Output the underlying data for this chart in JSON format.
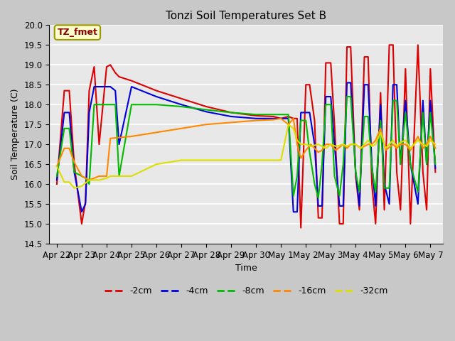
{
  "title": "Tonzi Soil Temperatures Set B",
  "xlabel": "Time",
  "ylabel": "Soil Temperature (C)",
  "ylim": [
    14.5,
    20.0
  ],
  "annotation": "TZ_fmet",
  "fig_color": "#c8c8c8",
  "ax_color": "#e8e8e8",
  "x_labels": [
    "Apr 22",
    "Apr 23",
    "Apr 24",
    "Apr 25",
    "Apr 26",
    "Apr 27",
    "Apr 28",
    "Apr 29",
    "Apr 30",
    "May 1",
    "May 2",
    "May 3",
    "May 4",
    "May 5",
    "May 6",
    "May 7"
  ],
  "series_colors": {
    "-2cm": "#dd0000",
    "-4cm": "#0000dd",
    "-8cm": "#00bb00",
    "-16cm": "#ff8800",
    "-32cm": "#dddd00"
  },
  "t_red": [
    0.0,
    0.3,
    0.5,
    0.7,
    1.0,
    1.15,
    1.3,
    1.5,
    1.7,
    2.0,
    2.15,
    2.35,
    2.5,
    3.0,
    4.0,
    5.0,
    6.0,
    7.0,
    8.0,
    8.7,
    9.0,
    9.3,
    9.5,
    9.65,
    9.8,
    10.0,
    10.15,
    10.35,
    10.5,
    10.65,
    10.8,
    11.0,
    11.15,
    11.35,
    11.5,
    11.65,
    11.8,
    12.0,
    12.15,
    12.35,
    12.5,
    12.65,
    12.8,
    13.0,
    13.15,
    13.35,
    13.5,
    13.65,
    13.8,
    14.0,
    14.2,
    14.5,
    14.7,
    14.85,
    15.0,
    15.2
  ],
  "y_red": [
    16.0,
    18.35,
    18.35,
    16.5,
    15.0,
    15.55,
    18.35,
    18.95,
    17.0,
    18.95,
    19.0,
    18.8,
    18.7,
    18.6,
    18.35,
    18.15,
    17.95,
    17.8,
    17.72,
    17.7,
    17.65,
    17.7,
    17.65,
    17.65,
    14.9,
    18.5,
    18.5,
    17.6,
    15.15,
    15.15,
    19.05,
    19.05,
    17.5,
    15.0,
    15.0,
    19.45,
    19.45,
    16.2,
    15.35,
    19.2,
    19.2,
    16.0,
    15.0,
    18.3,
    15.35,
    19.5,
    19.5,
    16.3,
    15.35,
    18.9,
    15.0,
    19.5,
    16.3,
    15.35,
    18.9,
    16.3
  ],
  "t_blue": [
    0.0,
    0.3,
    0.5,
    0.7,
    1.0,
    1.15,
    1.3,
    1.5,
    2.0,
    2.15,
    2.35,
    2.5,
    3.0,
    4.0,
    5.0,
    6.0,
    7.0,
    8.0,
    8.7,
    9.0,
    9.3,
    9.5,
    9.65,
    9.8,
    10.0,
    10.15,
    10.35,
    10.5,
    10.65,
    10.8,
    11.0,
    11.15,
    11.35,
    11.5,
    11.65,
    11.8,
    12.0,
    12.15,
    12.35,
    12.5,
    12.65,
    12.8,
    13.0,
    13.15,
    13.35,
    13.5,
    13.65,
    13.8,
    14.0,
    14.2,
    14.5,
    14.7,
    14.85,
    15.0,
    15.2
  ],
  "y_blue": [
    16.1,
    17.8,
    17.8,
    16.3,
    15.3,
    15.5,
    17.8,
    18.45,
    18.45,
    18.45,
    18.35,
    17.0,
    18.45,
    18.2,
    18.0,
    17.82,
    17.7,
    17.65,
    17.65,
    17.65,
    17.65,
    15.3,
    15.3,
    17.8,
    17.8,
    17.8,
    17.0,
    15.45,
    15.45,
    18.2,
    18.2,
    17.0,
    15.45,
    15.45,
    18.55,
    18.55,
    16.3,
    15.45,
    18.5,
    18.5,
    16.5,
    15.45,
    18.0,
    16.0,
    15.5,
    18.5,
    18.5,
    16.5,
    18.1,
    16.5,
    15.5,
    18.1,
    16.5,
    18.1,
    16.4
  ],
  "t_green": [
    0.0,
    0.3,
    0.5,
    0.7,
    1.0,
    1.15,
    1.3,
    1.5,
    2.0,
    2.15,
    2.35,
    2.5,
    3.0,
    4.0,
    5.0,
    6.0,
    7.0,
    8.0,
    8.7,
    9.0,
    9.3,
    9.5,
    9.65,
    9.8,
    10.0,
    10.15,
    10.35,
    10.5,
    10.65,
    10.8,
    11.0,
    11.15,
    11.35,
    11.5,
    11.65,
    11.8,
    12.0,
    12.15,
    12.35,
    12.5,
    12.65,
    12.8,
    13.0,
    13.15,
    13.35,
    13.5,
    13.65,
    13.8,
    14.0,
    14.2,
    14.5,
    14.7,
    14.85,
    15.0,
    15.2
  ],
  "y_green": [
    16.2,
    17.4,
    17.4,
    16.3,
    16.2,
    16.15,
    16.0,
    18.0,
    18.0,
    18.0,
    18.0,
    16.2,
    18.0,
    18.0,
    17.95,
    17.87,
    17.8,
    17.75,
    17.75,
    17.75,
    17.75,
    15.7,
    16.2,
    17.6,
    17.6,
    16.8,
    16.0,
    15.65,
    16.5,
    18.0,
    18.0,
    16.2,
    15.7,
    16.5,
    18.2,
    18.2,
    16.3,
    15.8,
    17.7,
    17.7,
    16.4,
    15.8,
    17.6,
    15.9,
    15.9,
    18.1,
    18.1,
    16.5,
    17.8,
    16.5,
    15.8,
    17.8,
    16.5,
    17.8,
    16.5
  ],
  "t_orange": [
    0.0,
    0.3,
    0.5,
    0.7,
    1.0,
    1.3,
    1.7,
    2.0,
    2.15,
    3.0,
    4.0,
    5.0,
    6.0,
    7.0,
    8.0,
    8.7,
    9.0,
    9.3,
    9.5,
    9.65,
    9.8,
    10.0,
    10.2,
    10.5,
    10.65,
    10.8,
    11.0,
    11.2,
    11.5,
    11.65,
    11.8,
    12.0,
    12.2,
    12.5,
    12.65,
    12.8,
    13.0,
    13.2,
    13.5,
    13.65,
    13.8,
    14.0,
    14.2,
    14.5,
    14.7,
    14.85,
    15.0,
    15.2
  ],
  "y_orange": [
    16.45,
    16.9,
    16.9,
    16.55,
    16.2,
    16.1,
    16.2,
    16.2,
    17.15,
    17.2,
    17.3,
    17.4,
    17.5,
    17.55,
    17.6,
    17.62,
    17.65,
    17.5,
    17.65,
    17.0,
    16.65,
    16.85,
    17.0,
    16.8,
    16.85,
    17.0,
    17.0,
    16.85,
    17.0,
    16.9,
    17.0,
    17.0,
    16.9,
    17.0,
    17.0,
    17.1,
    17.4,
    16.85,
    17.0,
    16.9,
    17.0,
    17.0,
    16.85,
    17.2,
    16.9,
    17.0,
    17.2,
    16.9
  ],
  "t_yellow": [
    0.0,
    0.3,
    0.5,
    0.7,
    1.0,
    1.3,
    1.7,
    2.0,
    2.15,
    3.0,
    4.0,
    5.0,
    6.0,
    7.0,
    8.0,
    8.7,
    9.0,
    9.3,
    9.5,
    9.65,
    9.8,
    10.0,
    10.2,
    10.5,
    10.65,
    10.8,
    11.0,
    11.2,
    11.5,
    11.65,
    11.8,
    12.0,
    12.2,
    12.5,
    12.65,
    12.8,
    13.0,
    13.2,
    13.5,
    13.65,
    13.8,
    14.0,
    14.2,
    14.5,
    14.7,
    14.85,
    15.0,
    15.2
  ],
  "y_yellow": [
    16.45,
    16.05,
    16.05,
    15.9,
    15.95,
    16.1,
    16.1,
    16.15,
    16.2,
    16.2,
    16.5,
    16.6,
    16.6,
    16.6,
    16.6,
    16.6,
    16.6,
    17.5,
    17.4,
    17.1,
    17.0,
    17.0,
    16.95,
    17.0,
    16.95,
    16.9,
    17.0,
    16.95,
    17.0,
    16.95,
    17.0,
    17.0,
    16.9,
    17.1,
    16.95,
    17.0,
    17.3,
    16.9,
    17.1,
    16.95,
    17.05,
    17.1,
    16.9,
    17.1,
    17.0,
    16.95,
    17.1,
    17.0
  ]
}
